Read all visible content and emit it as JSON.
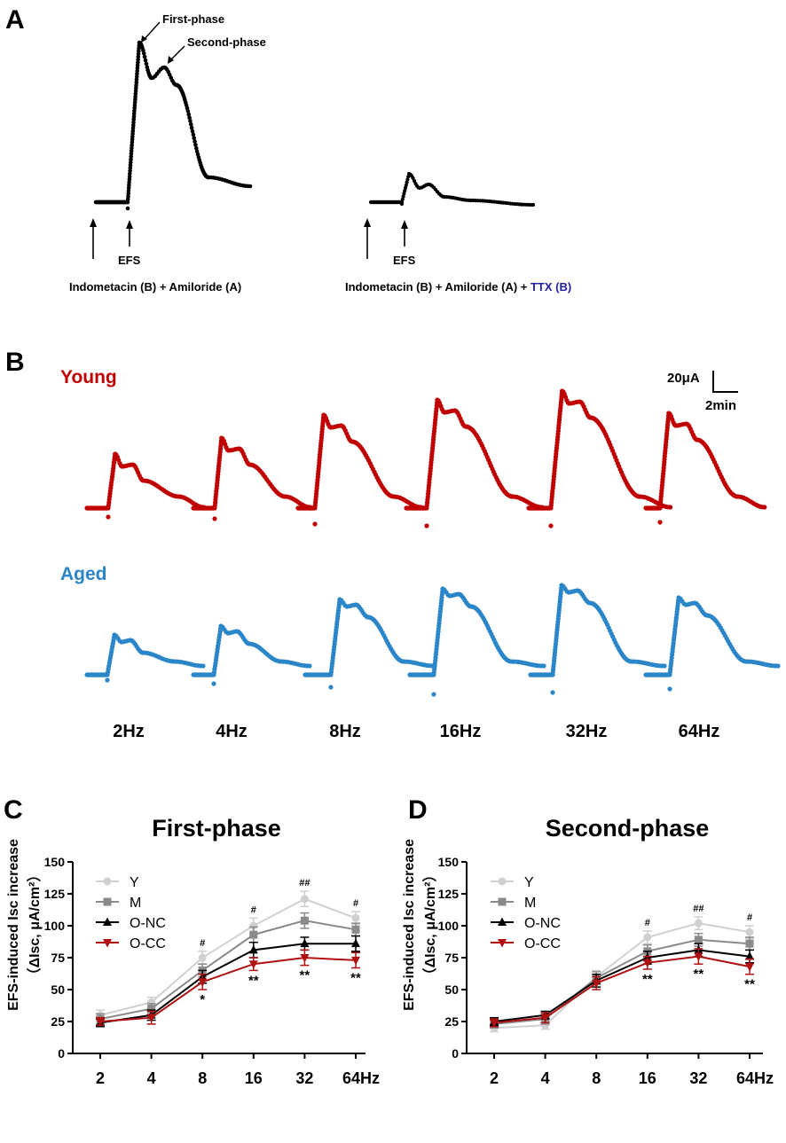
{
  "panel_a": {
    "letter": "A",
    "first_phase": "First-phase",
    "second_phase": "Second-phase",
    "efs": "EFS",
    "left_condition": "Indometacin (B) + Amiloride (A)",
    "right_condition": "Indometacin (B) + Amiloride (A) + ",
    "ttx": "TTX (B)",
    "ttx_color": "#1f1fa8"
  },
  "panel_b": {
    "letter": "B",
    "young_label": "Young",
    "aged_label": "Aged",
    "young_color": "#c00000",
    "aged_color": "#2a86c8",
    "scale_current": "20μA",
    "scale_time": "2min",
    "frequencies": [
      "2Hz",
      "4Hz",
      "8Hz",
      "16Hz",
      "32Hz",
      "64Hz"
    ]
  },
  "series_colors": {
    "Y": "#d0d0d0",
    "M": "#8a8a8a",
    "O-NC": "#000000",
    "O-CC": "#b01010"
  },
  "chart_data": [
    {
      "letter": "C",
      "type": "line",
      "title": "First-phase",
      "ylabel_line1": "EFS-induced Isc increase",
      "ylabel_line2": "（ΔIsc, μA/cm²）",
      "categories": [
        "2",
        "4",
        "8",
        "16",
        "32",
        "64Hz"
      ],
      "ylim": [
        0,
        150
      ],
      "yticks": [
        "0",
        "25",
        "50",
        "75",
        "100",
        "125",
        "150"
      ],
      "series": [
        {
          "name": "Y",
          "values": [
            30,
            40,
            75,
            100,
            121,
            106
          ],
          "errors": [
            4,
            4,
            5,
            6,
            6,
            5
          ]
        },
        {
          "name": "M",
          "values": [
            27,
            35,
            65,
            93,
            104,
            97
          ],
          "errors": [
            4,
            4,
            5,
            6,
            6,
            5
          ]
        },
        {
          "name": "O-NC",
          "values": [
            24,
            30,
            60,
            81,
            86,
            86
          ],
          "errors": [
            3,
            4,
            5,
            6,
            5,
            6
          ]
        },
        {
          "name": "O-CC",
          "values": [
            25,
            28,
            56,
            70,
            75,
            73
          ],
          "errors": [
            3,
            5,
            6,
            5,
            6,
            6
          ]
        }
      ],
      "annotations": [
        {
          "category": "8",
          "above": "#",
          "below": "*"
        },
        {
          "category": "16",
          "above": "#",
          "below": "**"
        },
        {
          "category": "32",
          "above": "##",
          "below": "**"
        },
        {
          "category": "64Hz",
          "above": "#",
          "below": "**"
        }
      ]
    },
    {
      "letter": "D",
      "type": "line",
      "title": "Second-phase",
      "ylabel_line1": "EFS-induced Isc increase",
      "ylabel_line2": "（ΔIsc, μA/cm²）",
      "categories": [
        "2",
        "4",
        "8",
        "16",
        "32",
        "64Hz"
      ],
      "ylim": [
        0,
        150
      ],
      "yticks": [
        "0",
        "25",
        "50",
        "75",
        "100",
        "125",
        "150"
      ],
      "series": [
        {
          "name": "Y",
          "values": [
            20,
            22,
            60,
            91,
            102,
            95
          ],
          "errors": [
            3,
            3,
            5,
            5,
            5,
            5
          ]
        },
        {
          "name": "M",
          "values": [
            23,
            27,
            59,
            80,
            89,
            86
          ],
          "errors": [
            3,
            4,
            5,
            5,
            5,
            5
          ]
        },
        {
          "name": "O-NC",
          "values": [
            25,
            30,
            57,
            75,
            81,
            76
          ],
          "errors": [
            3,
            3,
            5,
            5,
            5,
            5
          ]
        },
        {
          "name": "O-CC",
          "values": [
            24,
            28,
            55,
            71,
            76,
            68
          ],
          "errors": [
            3,
            4,
            5,
            5,
            6,
            6
          ]
        }
      ],
      "annotations": [
        {
          "category": "16",
          "above": "#",
          "below": "**"
        },
        {
          "category": "32",
          "above": "##",
          "below": "**"
        },
        {
          "category": "64Hz",
          "above": "#",
          "below": "**"
        }
      ]
    }
  ]
}
